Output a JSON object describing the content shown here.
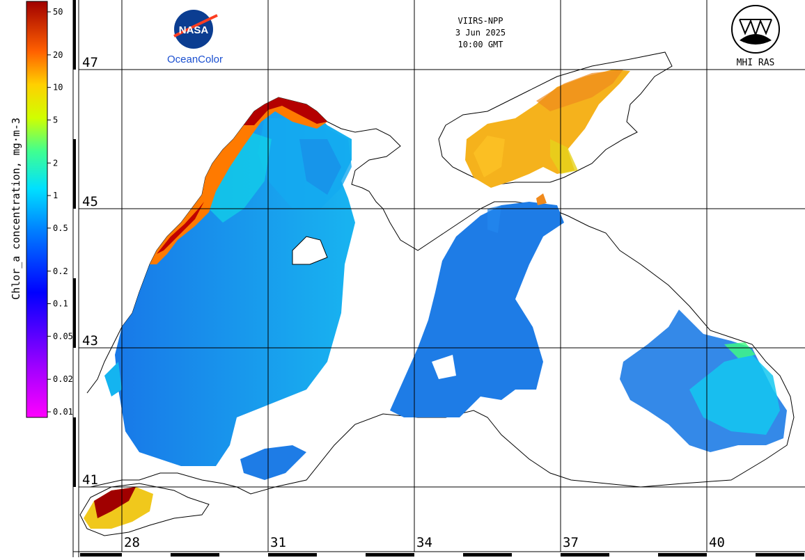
{
  "header": {
    "sensor": "VIIRS-NPP",
    "date": "3 Jun 2025",
    "time": "10:00 GMT"
  },
  "logos": {
    "left_mark": "NASA",
    "left_caption": "OceanColor",
    "right_caption": "MHI RAS"
  },
  "colorbar": {
    "title": "Chlor_a concentration, mg·m-3",
    "scale": "log",
    "range": [
      0.01,
      50
    ],
    "ticks": [
      "50",
      "20",
      "10",
      "5",
      "2",
      "1",
      "0.5",
      "0.2",
      "0.1",
      "0.05",
      "0.02",
      "0.01"
    ],
    "colors": [
      "#ff00ff",
      "#9900ff",
      "#0000ff",
      "#0080ff",
      "#00ffff",
      "#00ff80",
      "#ffff00",
      "#ff8000",
      "#ff0000",
      "#800000"
    ]
  },
  "grid": {
    "lat_labels": [
      "47",
      "45",
      "43",
      "41"
    ],
    "lon_labels": [
      "28",
      "31",
      "34",
      "37",
      "40"
    ]
  },
  "colors": {
    "water_low": "#1e78e6",
    "water_mid": "#14aaf0",
    "water_high": "#ffb400",
    "coast_bloom": "#b40000",
    "land": "#ffffff",
    "coastline": "#000000"
  }
}
